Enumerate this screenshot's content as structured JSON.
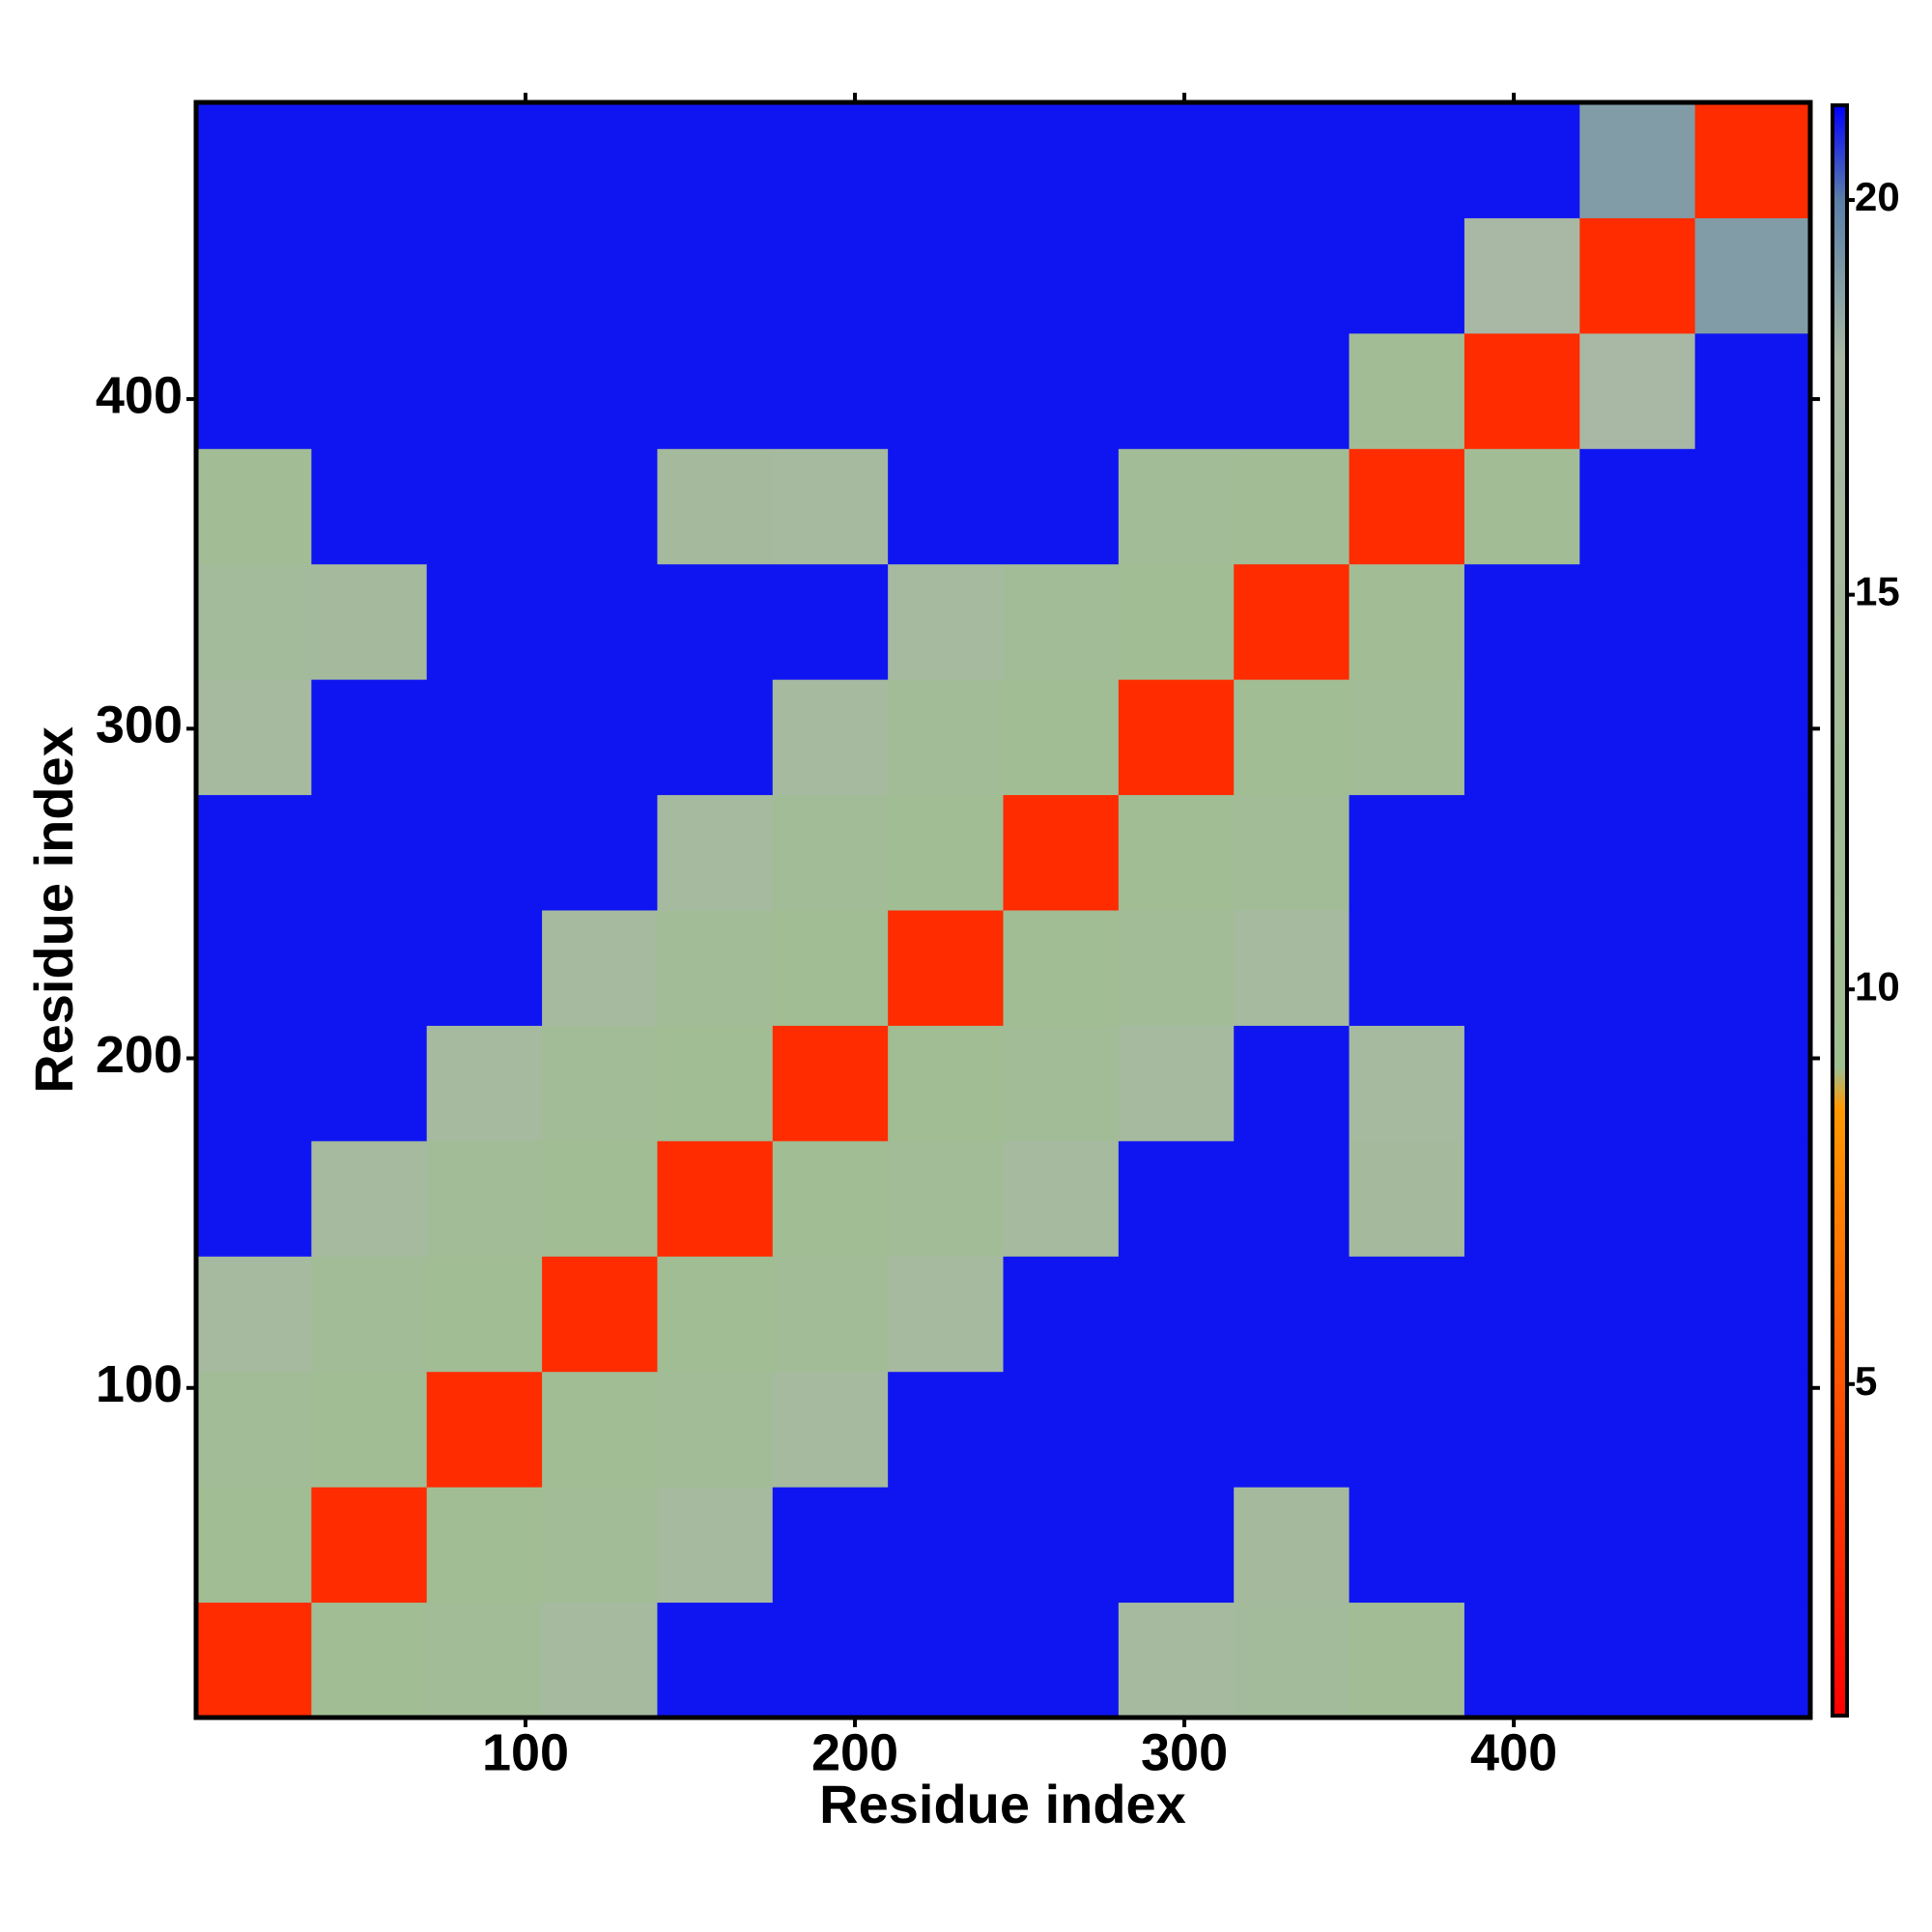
{
  "chart_data": {
    "type": "heatmap",
    "x_label": "Residue index",
    "y_label": "Residue index",
    "xbins": [
      0,
      35,
      70,
      105,
      140,
      175,
      210,
      245,
      280,
      315,
      350,
      385,
      420,
      455,
      490
    ],
    "ybins": [
      0,
      35,
      70,
      105,
      140,
      175,
      210,
      245,
      280,
      315,
      350,
      385,
      420,
      455,
      490
    ],
    "xlim": [
      0,
      490
    ],
    "ylim": [
      0,
      490
    ],
    "xticks": [
      100,
      200,
      300,
      400
    ],
    "yticks": [
      100,
      200,
      300,
      400
    ],
    "z": [
      [
        3,
        11,
        13,
        16,
        21,
        21,
        21,
        21,
        16,
        14,
        12,
        21,
        21,
        21
      ],
      [
        11,
        3,
        11,
        13,
        16,
        21,
        21,
        21,
        21,
        15,
        21,
        21,
        21,
        21
      ],
      [
        13,
        11,
        3,
        11,
        13,
        16,
        21,
        21,
        21,
        21,
        21,
        21,
        21,
        21
      ],
      [
        16,
        13,
        11,
        3,
        11,
        13,
        16,
        21,
        21,
        21,
        21,
        21,
        21,
        21
      ],
      [
        21,
        16,
        13,
        11,
        3,
        11,
        13,
        16,
        21,
        21,
        15,
        21,
        21,
        21
      ],
      [
        21,
        21,
        16,
        13,
        11,
        3,
        11,
        13,
        16,
        21,
        16,
        21,
        21,
        21
      ],
      [
        21,
        21,
        21,
        16,
        13,
        11,
        3,
        11,
        13,
        16,
        21,
        21,
        21,
        21
      ],
      [
        21,
        21,
        21,
        21,
        16,
        13,
        11,
        3,
        11,
        13,
        21,
        21,
        21,
        21
      ],
      [
        16,
        21,
        21,
        21,
        21,
        16,
        13,
        11,
        3,
        11,
        13,
        21,
        21,
        21
      ],
      [
        14,
        15,
        21,
        21,
        21,
        21,
        16,
        13,
        11,
        3,
        12,
        21,
        21,
        21
      ],
      [
        12,
        21,
        21,
        21,
        15,
        16,
        21,
        21,
        13,
        12,
        3,
        12,
        21,
        21
      ],
      [
        21,
        21,
        21,
        21,
        21,
        21,
        21,
        21,
        21,
        21,
        12,
        3,
        18,
        21
      ],
      [
        21,
        21,
        21,
        21,
        21,
        21,
        21,
        21,
        21,
        21,
        21,
        18,
        3,
        19
      ],
      [
        21,
        21,
        21,
        21,
        21,
        21,
        21,
        21,
        21,
        21,
        21,
        21,
        19,
        3
      ]
    ],
    "colorscale": [
      [
        0.8,
        "#ff0000"
      ],
      [
        8.5,
        "#ff9900"
      ],
      [
        9,
        "#9fbf8f"
      ],
      [
        18,
        "#a8b8a4"
      ],
      [
        20,
        "#5a7fa8"
      ],
      [
        21.2,
        "#0000ff"
      ]
    ],
    "colorbar_lim": [
      0.8,
      21.2
    ],
    "colorbar_ticks": [
      5,
      10,
      15,
      20
    ]
  }
}
